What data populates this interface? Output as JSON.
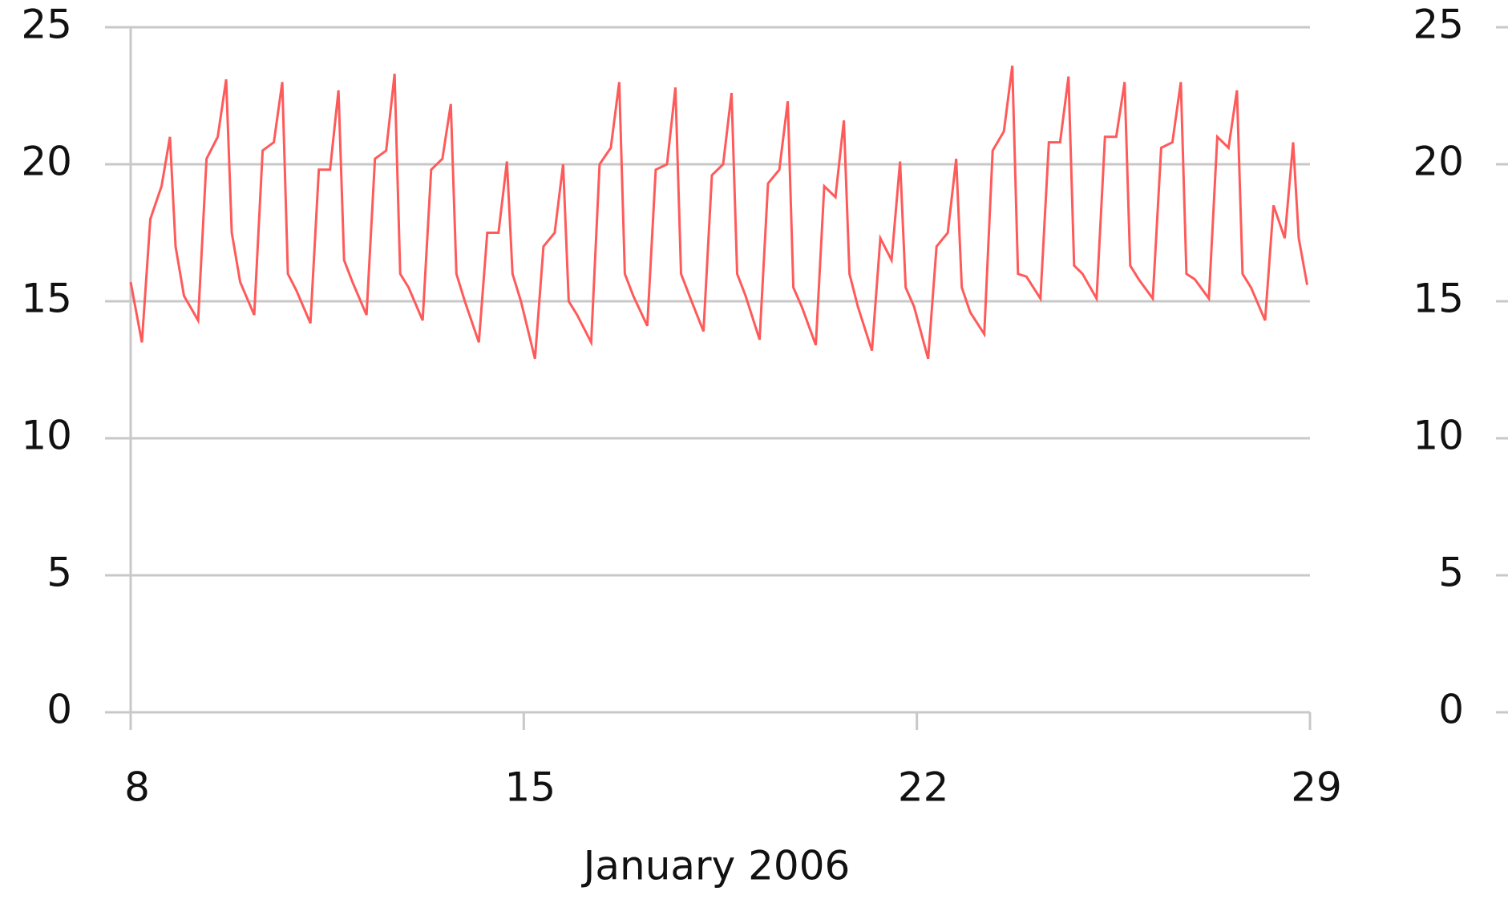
{
  "chart_data": {
    "type": "line",
    "x_label": "January 2006",
    "x": [
      8,
      8.2,
      8.35,
      8.55,
      8.7,
      8.8,
      8.95,
      9.2,
      9.35,
      9.55,
      9.7,
      9.8,
      9.95,
      10.2,
      10.35,
      10.55,
      10.7,
      10.8,
      10.95,
      11.2,
      11.35,
      11.55,
      11.7,
      11.8,
      11.95,
      12.2,
      12.35,
      12.55,
      12.7,
      12.8,
      12.95,
      13.2,
      13.35,
      13.55,
      13.7,
      13.8,
      13.95,
      14.2,
      14.35,
      14.55,
      14.7,
      14.8,
      14.95,
      15.2,
      15.35,
      15.55,
      15.7,
      15.8,
      15.95,
      16.2,
      16.35,
      16.55,
      16.7,
      16.8,
      16.95,
      17.2,
      17.35,
      17.55,
      17.7,
      17.8,
      17.95,
      18.2,
      18.35,
      18.55,
      18.7,
      18.8,
      18.95,
      19.2,
      19.35,
      19.55,
      19.7,
      19.8,
      19.95,
      20.2,
      20.35,
      20.55,
      20.7,
      20.8,
      20.95,
      21.2,
      21.35,
      21.55,
      21.7,
      21.8,
      21.95,
      22.2,
      22.35,
      22.55,
      22.7,
      22.8,
      22.95,
      23.2,
      23.35,
      23.55,
      23.7,
      23.8,
      23.95,
      24.2,
      24.35,
      24.55,
      24.7,
      24.8,
      24.95,
      25.2,
      25.35,
      25.55,
      25.7,
      25.8,
      25.95,
      26.2,
      26.35,
      26.55,
      26.7,
      26.8,
      26.95,
      27.2,
      27.35,
      27.55,
      27.7,
      27.8,
      27.95,
      28.2,
      28.35,
      28.55,
      28.7,
      28.8,
      28.95
    ],
    "series": [
      {
        "color": "#ff5a5a",
        "values": [
          15.7,
          13.5,
          18,
          19.2,
          21,
          17,
          15.2,
          14.3,
          20.2,
          21,
          23.1,
          17.5,
          15.7,
          14.5,
          20.5,
          20.8,
          23,
          16,
          15.4,
          14.2,
          19.8,
          19.8,
          22.7,
          16.5,
          15.7,
          14.5,
          20.2,
          20.5,
          23.3,
          16,
          15.5,
          14.3,
          19.8,
          20.2,
          22.2,
          16,
          15,
          13.5,
          17.5,
          17.5,
          20.1,
          16,
          15,
          12.9,
          17,
          17.5,
          20,
          15,
          14.5,
          13.5,
          20,
          20.6,
          23,
          16,
          15.2,
          14.1,
          19.8,
          20,
          22.8,
          16,
          15.2,
          13.9,
          19.6,
          20,
          22.6,
          16,
          15.2,
          13.6,
          19.3,
          19.8,
          22.3,
          15.5,
          14.8,
          13.4,
          19.2,
          18.8,
          21.6,
          16,
          14.8,
          13.2,
          17.3,
          16.5,
          20.1,
          15.5,
          14.8,
          12.9,
          17,
          17.5,
          20.2,
          15.5,
          14.6,
          13.8,
          20.5,
          21.2,
          23.6,
          16,
          15.9,
          15.1,
          20.8,
          20.8,
          23.2,
          16.3,
          16,
          15.1,
          21,
          21,
          23,
          16.3,
          15.8,
          15.1,
          20.6,
          20.8,
          23,
          16,
          15.8,
          15.1,
          21,
          20.6,
          22.7,
          16,
          15.5,
          14.3,
          18.5,
          17.3,
          20.8,
          17.3,
          15.6
        ]
      }
    ],
    "xlim": [
      8,
      29
    ],
    "xticks": [
      8,
      15,
      22,
      29
    ],
    "ylim": [
      0,
      25
    ],
    "yticks": [
      0,
      5,
      10,
      15,
      20,
      25
    ],
    "y2lim": [
      0,
      25
    ],
    "y2ticks": [
      0,
      5,
      10,
      15,
      20,
      25
    ],
    "grid": true
  }
}
